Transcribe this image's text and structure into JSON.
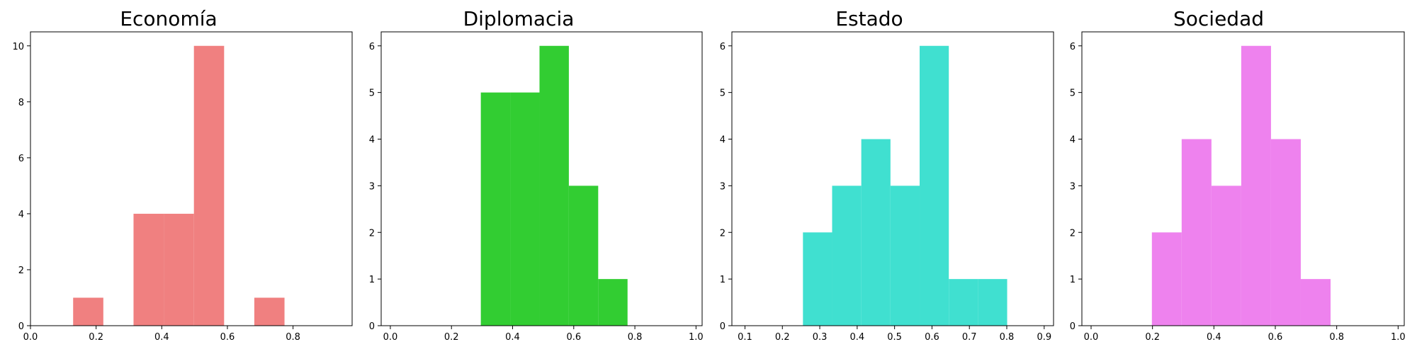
{
  "chart_data": [
    {
      "type": "bar",
      "title": "Economía",
      "color": "#f08080",
      "bin_edges": [
        0.038,
        0.13,
        0.222,
        0.314,
        0.406,
        0.498,
        0.59,
        0.682,
        0.774,
        0.866,
        0.958
      ],
      "values": [
        0,
        1,
        0,
        4,
        4,
        10,
        0,
        1,
        0,
        0
      ],
      "xlim": [
        0.0,
        0.98
      ],
      "ylim": [
        0,
        10.5
      ],
      "xticks": [
        0.0,
        0.2,
        0.4,
        0.6,
        0.8
      ],
      "xtick_labels": [
        "0.0",
        "0.2",
        "0.4",
        "0.6",
        "0.8"
      ],
      "yticks": [
        0,
        2,
        4,
        6,
        8,
        10
      ],
      "ytick_labels": [
        "0",
        "2",
        "4",
        "6",
        "8",
        "10"
      ]
    },
    {
      "type": "bar",
      "title": "Diplomacia",
      "color": "#32cd32",
      "bin_edges": [
        0.296,
        0.392,
        0.488,
        0.584,
        0.68,
        0.776
      ],
      "values": [
        5,
        5,
        6,
        3,
        1
      ],
      "xlim": [
        -0.03,
        1.02
      ],
      "ylim": [
        0,
        6.3
      ],
      "xticks": [
        0.0,
        0.2,
        0.4,
        0.6,
        0.8,
        1.0
      ],
      "xtick_labels": [
        "0.0",
        "0.2",
        "0.4",
        "0.6",
        "0.8",
        "1.0"
      ],
      "yticks": [
        0,
        1,
        2,
        3,
        4,
        5,
        6
      ],
      "ytick_labels": [
        "0",
        "1",
        "2",
        "3",
        "4",
        "5",
        "6"
      ]
    },
    {
      "type": "bar",
      "title": "Estado",
      "color": "#40e0d0",
      "bin_edges": [
        0.255,
        0.333,
        0.411,
        0.489,
        0.567,
        0.645,
        0.723,
        0.801
      ],
      "values": [
        2,
        3,
        4,
        3,
        6,
        1,
        1
      ],
      "xlim": [
        0.065,
        0.925
      ],
      "ylim": [
        0,
        6.3
      ],
      "xticks": [
        0.1,
        0.2,
        0.3,
        0.4,
        0.5,
        0.6,
        0.7,
        0.8,
        0.9
      ],
      "xtick_labels": [
        "0.1",
        "0.2",
        "0.3",
        "0.4",
        "0.5",
        "0.6",
        "0.7",
        "0.8",
        "0.9"
      ],
      "yticks": [
        0,
        1,
        2,
        3,
        4,
        5,
        6
      ],
      "ytick_labels": [
        "0",
        "1",
        "2",
        "3",
        "4",
        "5",
        "6"
      ]
    },
    {
      "type": "bar",
      "title": "Sociedad",
      "color": "#ee82ee",
      "bin_edges": [
        0.198,
        0.295,
        0.392,
        0.489,
        0.586,
        0.683,
        0.78
      ],
      "values": [
        2,
        4,
        3,
        6,
        4,
        1
      ],
      "xlim": [
        -0.03,
        1.02
      ],
      "ylim": [
        0,
        6.3
      ],
      "xticks": [
        0.0,
        0.2,
        0.4,
        0.6,
        0.8,
        1.0
      ],
      "xtick_labels": [
        "0.0",
        "0.2",
        "0.4",
        "0.6",
        "0.8",
        "1.0"
      ],
      "yticks": [
        0,
        1,
        2,
        3,
        4,
        5,
        6
      ],
      "ytick_labels": [
        "0",
        "1",
        "2",
        "3",
        "4",
        "5",
        "6"
      ]
    }
  ]
}
